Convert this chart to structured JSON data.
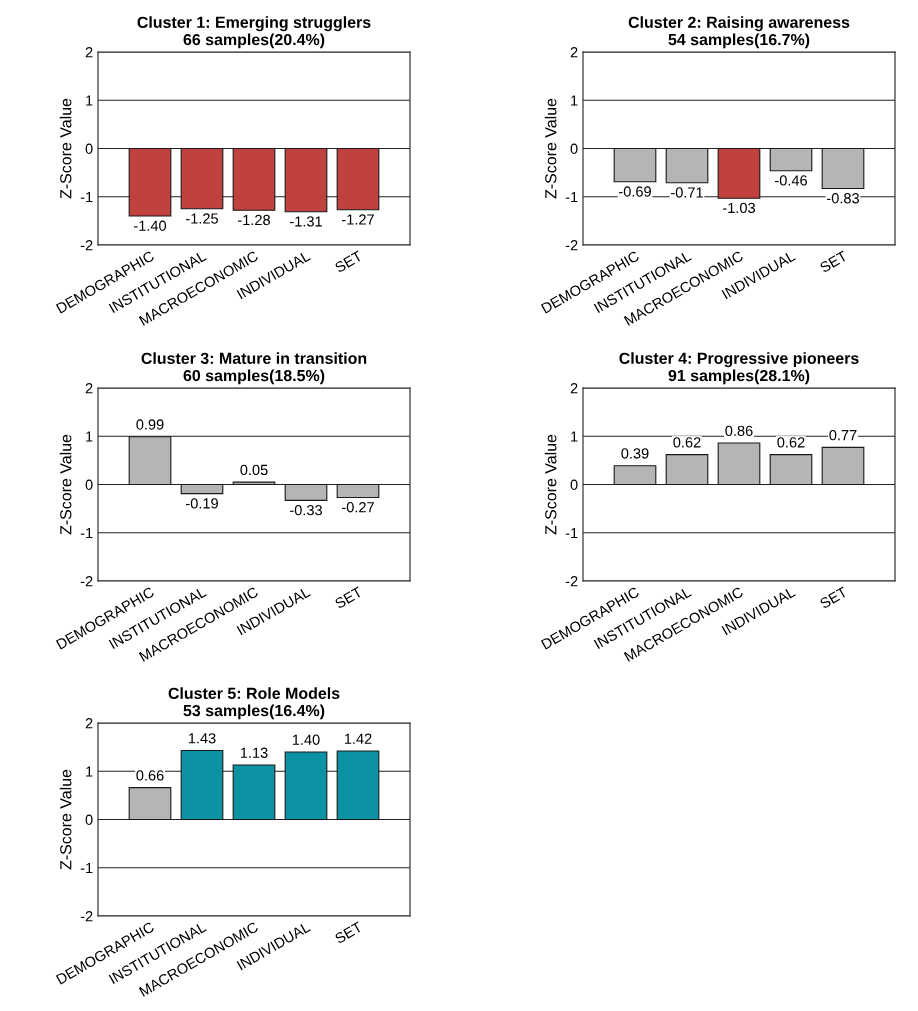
{
  "chart_data": [
    {
      "type": "bar",
      "title": "Cluster 1: Emerging strugglers\n66 samples(20.4%)",
      "ylabel": "Z-Score Value",
      "categories": [
        "DEMOGRAPHIC",
        "INSTITUTIONAL",
        "MACROECONOMIC",
        "INDIVIDUAL",
        "SET"
      ],
      "values": [
        -1.4,
        -1.25,
        -1.28,
        -1.31,
        -1.27
      ],
      "value_labels": [
        "-1.40",
        "-1.25",
        "-1.28",
        "-1.31",
        "-1.27"
      ],
      "colors": [
        "#c0413e",
        "#c0413e",
        "#c0413e",
        "#c0413e",
        "#c0413e"
      ],
      "ylim": [
        -2,
        2
      ],
      "yticks": [
        -2,
        -1,
        0,
        1,
        2
      ],
      "grid": "y"
    },
    {
      "type": "bar",
      "title": "Cluster 2: Raising awareness\n54 samples(16.7%)",
      "ylabel": "Z-Score Value",
      "categories": [
        "DEMOGRAPHIC",
        "INSTITUTIONAL",
        "MACROECONOMIC",
        "INDIVIDUAL",
        "SET"
      ],
      "values": [
        -0.69,
        -0.71,
        -1.03,
        -0.46,
        -0.83
      ],
      "value_labels": [
        "-0.69",
        "-0.71",
        "-1.03",
        "-0.46",
        "-0.83"
      ],
      "colors": [
        "#b5b5b5",
        "#b5b5b5",
        "#c0413e",
        "#b5b5b5",
        "#b5b5b5"
      ],
      "ylim": [
        -2,
        2
      ],
      "yticks": [
        -2,
        -1,
        0,
        1,
        2
      ],
      "grid": "y"
    },
    {
      "type": "bar",
      "title": "Cluster 3: Mature in transition\n60 samples(18.5%)",
      "ylabel": "Z-Score Value",
      "categories": [
        "DEMOGRAPHIC",
        "INSTITUTIONAL",
        "MACROECONOMIC",
        "INDIVIDUAL",
        "SET"
      ],
      "values": [
        0.99,
        -0.19,
        0.05,
        -0.33,
        -0.27
      ],
      "value_labels": [
        "0.99",
        "-0.19",
        "0.05",
        "-0.33",
        "-0.27"
      ],
      "colors": [
        "#b5b5b5",
        "#b5b5b5",
        "#b5b5b5",
        "#b5b5b5",
        "#b5b5b5"
      ],
      "ylim": [
        -2,
        2
      ],
      "yticks": [
        -2,
        -1,
        0,
        1,
        2
      ],
      "grid": "y"
    },
    {
      "type": "bar",
      "title": "Cluster 4: Progressive pioneers\n91 samples(28.1%)",
      "ylabel": "Z-Score Value",
      "categories": [
        "DEMOGRAPHIC",
        "INSTITUTIONAL",
        "MACROECONOMIC",
        "INDIVIDUAL",
        "SET"
      ],
      "values": [
        0.39,
        0.62,
        0.86,
        0.62,
        0.77
      ],
      "value_labels": [
        "0.39",
        "0.62",
        "0.86",
        "0.62",
        "0.77"
      ],
      "colors": [
        "#b5b5b5",
        "#b5b5b5",
        "#b5b5b5",
        "#b5b5b5",
        "#b5b5b5"
      ],
      "ylim": [
        -2,
        2
      ],
      "yticks": [
        -2,
        -1,
        0,
        1,
        2
      ],
      "grid": "y"
    },
    {
      "type": "bar",
      "title": "Cluster 5: Role Models\n53 samples(16.4%)",
      "ylabel": "Z-Score Value",
      "categories": [
        "DEMOGRAPHIC",
        "INSTITUTIONAL",
        "MACROECONOMIC",
        "INDIVIDUAL",
        "SET"
      ],
      "values": [
        0.66,
        1.43,
        1.13,
        1.4,
        1.42
      ],
      "value_labels": [
        "0.66",
        "1.43",
        "1.13",
        "1.40",
        "1.42"
      ],
      "colors": [
        "#b5b5b5",
        "#0b92a3",
        "#0b92a3",
        "#0b92a3",
        "#0b92a3"
      ],
      "ylim": [
        -2,
        2
      ],
      "yticks": [
        -2,
        -1,
        0,
        1,
        2
      ],
      "grid": "y"
    }
  ]
}
